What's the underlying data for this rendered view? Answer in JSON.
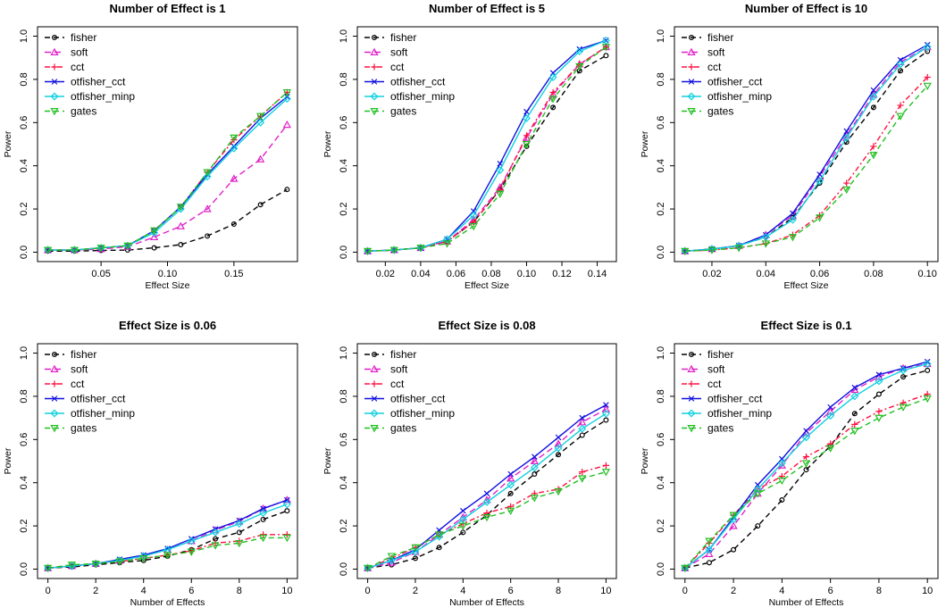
{
  "colors": {
    "fisher": "#000000",
    "soft": "#e020c8",
    "cct": "#ff1040",
    "otfisher_cct": "#1010e0",
    "otfisher_minp": "#10d0e0",
    "gates": "#20c020"
  },
  "chart_data": [
    {
      "type": "line",
      "title": "Number of Effect is 1",
      "xlabel": "Effect Size",
      "ylabel": "Power",
      "xlim": [
        0.01,
        0.19
      ],
      "ylim": [
        0,
        1
      ],
      "xticks": [
        0.05,
        0.1,
        0.15
      ],
      "xtick_labels": [
        "0.05",
        "0.10",
        "0.15"
      ],
      "yticks": [
        0,
        0.2,
        0.4,
        0.6,
        0.8,
        1.0
      ],
      "ytick_labels": [
        "0.0",
        "0.2",
        "0.4",
        "0.6",
        "0.8",
        "1.0"
      ],
      "legend": "top-left",
      "x": [
        0.01,
        0.03,
        0.05,
        0.07,
        0.09,
        0.11,
        0.13,
        0.15,
        0.17,
        0.19
      ],
      "series": [
        {
          "name": "fisher",
          "values": [
            0.005,
            0.005,
            0.008,
            0.01,
            0.02,
            0.035,
            0.075,
            0.13,
            0.22,
            0.29
          ]
        },
        {
          "name": "soft",
          "values": [
            0.01,
            0.01,
            0.015,
            0.025,
            0.07,
            0.12,
            0.2,
            0.34,
            0.43,
            0.59
          ]
        },
        {
          "name": "cct",
          "values": [
            0.01,
            0.01,
            0.02,
            0.03,
            0.1,
            0.21,
            0.37,
            0.52,
            0.63,
            0.74
          ]
        },
        {
          "name": "otfisher_cct",
          "values": [
            0.01,
            0.01,
            0.02,
            0.03,
            0.1,
            0.21,
            0.36,
            0.49,
            0.62,
            0.72
          ]
        },
        {
          "name": "otfisher_minp",
          "values": [
            0.01,
            0.01,
            0.02,
            0.03,
            0.09,
            0.2,
            0.35,
            0.48,
            0.6,
            0.71
          ]
        },
        {
          "name": "gates",
          "values": [
            0.01,
            0.01,
            0.02,
            0.03,
            0.1,
            0.21,
            0.37,
            0.53,
            0.63,
            0.74
          ]
        }
      ]
    },
    {
      "type": "line",
      "title": "Number of Effect is 5",
      "xlabel": "Effect Size",
      "ylabel": "Power",
      "xlim": [
        0.01,
        0.145
      ],
      "ylim": [
        0,
        1
      ],
      "xticks": [
        0.02,
        0.04,
        0.06,
        0.08,
        0.1,
        0.12,
        0.14
      ],
      "xtick_labels": [
        "0.02",
        "0.04",
        "0.06",
        "0.08",
        "0.10",
        "0.12",
        "0.14"
      ],
      "yticks": [
        0,
        0.2,
        0.4,
        0.6,
        0.8,
        1.0
      ],
      "ytick_labels": [
        "0.0",
        "0.2",
        "0.4",
        "0.6",
        "0.8",
        "1.0"
      ],
      "legend": "top-left",
      "x": [
        0.01,
        0.025,
        0.04,
        0.055,
        0.07,
        0.085,
        0.1,
        0.115,
        0.13,
        0.145
      ],
      "series": [
        {
          "name": "fisher",
          "values": [
            0.005,
            0.01,
            0.02,
            0.05,
            0.14,
            0.29,
            0.49,
            0.67,
            0.84,
            0.91
          ]
        },
        {
          "name": "soft",
          "values": [
            0.005,
            0.01,
            0.02,
            0.05,
            0.15,
            0.3,
            0.53,
            0.73,
            0.87,
            0.95
          ]
        },
        {
          "name": "cct",
          "values": [
            0.005,
            0.01,
            0.02,
            0.05,
            0.14,
            0.29,
            0.54,
            0.74,
            0.87,
            0.95
          ]
        },
        {
          "name": "otfisher_cct",
          "values": [
            0.005,
            0.01,
            0.02,
            0.06,
            0.19,
            0.41,
            0.65,
            0.83,
            0.94,
            0.98
          ]
        },
        {
          "name": "otfisher_minp",
          "values": [
            0.005,
            0.01,
            0.02,
            0.06,
            0.17,
            0.38,
            0.62,
            0.81,
            0.93,
            0.98
          ]
        },
        {
          "name": "gates",
          "values": [
            0.005,
            0.01,
            0.02,
            0.04,
            0.12,
            0.27,
            0.5,
            0.71,
            0.86,
            0.95
          ]
        }
      ]
    },
    {
      "type": "line",
      "title": "Number of Effect is 10",
      "xlabel": "Effect Size",
      "ylabel": "Power",
      "xlim": [
        0.01,
        0.1
      ],
      "ylim": [
        0,
        1
      ],
      "xticks": [
        0.02,
        0.04,
        0.06,
        0.08,
        0.1
      ],
      "xtick_labels": [
        "0.02",
        "0.04",
        "0.06",
        "0.08",
        "0.10"
      ],
      "yticks": [
        0,
        0.2,
        0.4,
        0.6,
        0.8,
        1.0
      ],
      "ytick_labels": [
        "0.0",
        "0.2",
        "0.4",
        "0.6",
        "0.8",
        "1.0"
      ],
      "legend": "top-left",
      "x": [
        0.01,
        0.02,
        0.03,
        0.04,
        0.05,
        0.06,
        0.07,
        0.08,
        0.09,
        0.1
      ],
      "series": [
        {
          "name": "fisher",
          "values": [
            0.005,
            0.015,
            0.03,
            0.07,
            0.16,
            0.32,
            0.51,
            0.67,
            0.84,
            0.93
          ]
        },
        {
          "name": "soft",
          "values": [
            0.005,
            0.015,
            0.03,
            0.08,
            0.17,
            0.35,
            0.54,
            0.73,
            0.88,
            0.95
          ]
        },
        {
          "name": "cct",
          "values": [
            0.005,
            0.01,
            0.02,
            0.04,
            0.08,
            0.17,
            0.32,
            0.49,
            0.68,
            0.81
          ]
        },
        {
          "name": "otfisher_cct",
          "values": [
            0.005,
            0.015,
            0.03,
            0.08,
            0.18,
            0.36,
            0.56,
            0.75,
            0.89,
            0.96
          ]
        },
        {
          "name": "otfisher_minp",
          "values": [
            0.005,
            0.015,
            0.03,
            0.07,
            0.15,
            0.33,
            0.53,
            0.72,
            0.87,
            0.95
          ]
        },
        {
          "name": "gates",
          "values": [
            0.005,
            0.01,
            0.02,
            0.04,
            0.07,
            0.16,
            0.29,
            0.45,
            0.63,
            0.77
          ]
        }
      ]
    },
    {
      "type": "line",
      "title": "Effect Size is 0.06",
      "xlabel": "Number of Effects",
      "ylabel": "Power",
      "xlim": [
        0,
        10
      ],
      "ylim": [
        0,
        1
      ],
      "xticks": [
        0,
        2,
        4,
        6,
        8,
        10
      ],
      "xtick_labels": [
        "0",
        "2",
        "4",
        "6",
        "8",
        "10"
      ],
      "yticks": [
        0,
        0.2,
        0.4,
        0.6,
        0.8,
        1.0
      ],
      "ytick_labels": [
        "0.0",
        "0.2",
        "0.4",
        "0.6",
        "0.8",
        "1.0"
      ],
      "legend": "top-left",
      "x": [
        0,
        1,
        2,
        3,
        4,
        5,
        6,
        7,
        8,
        9,
        10
      ],
      "series": [
        {
          "name": "fisher",
          "values": [
            0.005,
            0.01,
            0.02,
            0.03,
            0.04,
            0.06,
            0.09,
            0.14,
            0.17,
            0.23,
            0.27
          ]
        },
        {
          "name": "soft",
          "values": [
            0.005,
            0.015,
            0.025,
            0.04,
            0.06,
            0.09,
            0.13,
            0.18,
            0.22,
            0.28,
            0.32
          ]
        },
        {
          "name": "cct",
          "values": [
            0.005,
            0.015,
            0.025,
            0.035,
            0.05,
            0.065,
            0.085,
            0.12,
            0.13,
            0.16,
            0.16
          ]
        },
        {
          "name": "otfisher_cct",
          "values": [
            0.005,
            0.015,
            0.025,
            0.045,
            0.065,
            0.095,
            0.14,
            0.185,
            0.225,
            0.28,
            0.32
          ]
        },
        {
          "name": "otfisher_minp",
          "values": [
            0.005,
            0.015,
            0.025,
            0.04,
            0.06,
            0.09,
            0.13,
            0.17,
            0.21,
            0.26,
            0.3
          ]
        },
        {
          "name": "gates",
          "values": [
            0.005,
            0.02,
            0.025,
            0.035,
            0.05,
            0.065,
            0.08,
            0.11,
            0.12,
            0.145,
            0.145
          ]
        }
      ]
    },
    {
      "type": "line",
      "title": "Effect Size is 0.08",
      "xlabel": "Number of Effects",
      "ylabel": "Power",
      "xlim": [
        0,
        10
      ],
      "ylim": [
        0,
        1
      ],
      "xticks": [
        0,
        2,
        4,
        6,
        8,
        10
      ],
      "xtick_labels": [
        "0",
        "2",
        "4",
        "6",
        "8",
        "10"
      ],
      "yticks": [
        0,
        0.2,
        0.4,
        0.6,
        0.8,
        1.0
      ],
      "ytick_labels": [
        "0.0",
        "0.2",
        "0.4",
        "0.6",
        "0.8",
        "1.0"
      ],
      "legend": "top-left",
      "x": [
        0,
        1,
        2,
        3,
        4,
        5,
        6,
        7,
        8,
        9,
        10
      ],
      "series": [
        {
          "name": "fisher",
          "values": [
            0.005,
            0.02,
            0.05,
            0.1,
            0.17,
            0.25,
            0.35,
            0.44,
            0.53,
            0.62,
            0.69
          ]
        },
        {
          "name": "soft",
          "values": [
            0.005,
            0.03,
            0.08,
            0.16,
            0.24,
            0.32,
            0.42,
            0.5,
            0.58,
            0.68,
            0.74
          ]
        },
        {
          "name": "cct",
          "values": [
            0.005,
            0.05,
            0.1,
            0.16,
            0.21,
            0.26,
            0.29,
            0.35,
            0.37,
            0.45,
            0.48
          ]
        },
        {
          "name": "otfisher_cct",
          "values": [
            0.005,
            0.04,
            0.09,
            0.18,
            0.27,
            0.35,
            0.44,
            0.52,
            0.61,
            0.7,
            0.76
          ]
        },
        {
          "name": "otfisher_minp",
          "values": [
            0.005,
            0.04,
            0.08,
            0.15,
            0.23,
            0.31,
            0.39,
            0.47,
            0.56,
            0.65,
            0.72
          ]
        },
        {
          "name": "gates",
          "values": [
            0.005,
            0.06,
            0.1,
            0.16,
            0.2,
            0.24,
            0.27,
            0.33,
            0.36,
            0.42,
            0.45
          ]
        }
      ]
    },
    {
      "type": "line",
      "title": "Effect Size is 0.1",
      "xlabel": "Number of Effects",
      "ylabel": "Power",
      "xlim": [
        0,
        10
      ],
      "ylim": [
        0,
        1
      ],
      "xticks": [
        0,
        2,
        4,
        6,
        8,
        10
      ],
      "xtick_labels": [
        "0",
        "2",
        "4",
        "6",
        "8",
        "10"
      ],
      "yticks": [
        0,
        0.2,
        0.4,
        0.6,
        0.8,
        1.0
      ],
      "ytick_labels": [
        "0.0",
        "0.2",
        "0.4",
        "0.6",
        "0.8",
        "1.0"
      ],
      "legend": "top-left",
      "x": [
        0,
        1,
        2,
        3,
        4,
        5,
        6,
        7,
        8,
        9,
        10
      ],
      "series": [
        {
          "name": "fisher",
          "values": [
            0.005,
            0.03,
            0.09,
            0.2,
            0.32,
            0.46,
            0.57,
            0.72,
            0.81,
            0.89,
            0.92
          ]
        },
        {
          "name": "soft",
          "values": [
            0.005,
            0.07,
            0.2,
            0.35,
            0.48,
            0.63,
            0.73,
            0.83,
            0.89,
            0.93,
            0.95
          ]
        },
        {
          "name": "cct",
          "values": [
            0.005,
            0.12,
            0.25,
            0.37,
            0.43,
            0.52,
            0.58,
            0.67,
            0.73,
            0.77,
            0.81
          ]
        },
        {
          "name": "otfisher_cct",
          "values": [
            0.005,
            0.09,
            0.24,
            0.39,
            0.51,
            0.64,
            0.75,
            0.84,
            0.9,
            0.93,
            0.96
          ]
        },
        {
          "name": "otfisher_minp",
          "values": [
            0.005,
            0.09,
            0.23,
            0.37,
            0.49,
            0.61,
            0.71,
            0.8,
            0.87,
            0.92,
            0.95
          ]
        },
        {
          "name": "gates",
          "values": [
            0.005,
            0.13,
            0.25,
            0.35,
            0.41,
            0.49,
            0.56,
            0.64,
            0.7,
            0.75,
            0.79
          ]
        }
      ]
    }
  ]
}
